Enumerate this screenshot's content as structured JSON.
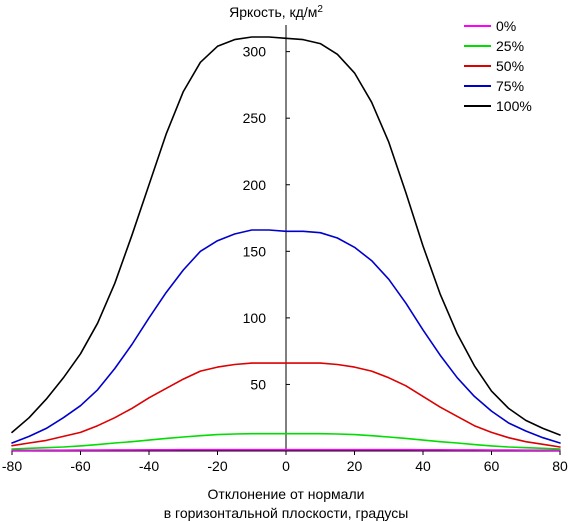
{
  "chart_data": {
    "type": "line",
    "title": "Яркость, кд/м",
    "title_superscript": "2",
    "xlabel_line1": "Отклонение от нормали",
    "xlabel_line2": "в горизонтальной плоскости, градусы",
    "ylabel": "",
    "xlim": [
      -80,
      80
    ],
    "ylim": [
      0,
      320
    ],
    "xticks": [
      -80,
      -60,
      -40,
      -20,
      0,
      20,
      40,
      60,
      80
    ],
    "yticks": [
      50,
      100,
      150,
      200,
      250,
      300
    ],
    "grid": false,
    "legend_position": "top-right",
    "x": [
      -80,
      -75,
      -70,
      -65,
      -60,
      -55,
      -50,
      -45,
      -40,
      -35,
      -30,
      -25,
      -20,
      -15,
      -10,
      -5,
      0,
      5,
      10,
      15,
      20,
      25,
      30,
      35,
      40,
      45,
      50,
      55,
      60,
      65,
      70,
      75,
      80
    ],
    "series": [
      {
        "name": "0%",
        "color": "#ff00ff",
        "values": [
          0.5,
          0.5,
          0.6,
          0.6,
          0.7,
          0.7,
          0.8,
          0.8,
          0.9,
          0.9,
          1.0,
          1.0,
          1.0,
          1.0,
          1.0,
          1.0,
          1.0,
          1.0,
          1.0,
          1.0,
          1.0,
          1.0,
          1.0,
          1.0,
          0.9,
          0.9,
          0.8,
          0.8,
          0.7,
          0.7,
          0.6,
          0.6,
          0.5
        ]
      },
      {
        "name": "25%",
        "color": "#00dd00",
        "values": [
          1.5,
          2.0,
          2.5,
          3.0,
          3.8,
          4.8,
          6.0,
          7.0,
          8.2,
          9.5,
          10.5,
          11.5,
          12.3,
          12.8,
          13.0,
          13.0,
          13.0,
          13.0,
          13.0,
          12.8,
          12.3,
          11.5,
          10.5,
          9.5,
          8.2,
          7.0,
          6.0,
          4.8,
          3.8,
          3.0,
          2.5,
          2.0,
          1.5
        ]
      },
      {
        "name": "50%",
        "color": "#dd0000",
        "values": [
          4,
          6,
          8,
          11,
          14,
          19,
          25,
          32,
          40,
          47,
          54,
          60,
          63,
          65,
          66,
          66,
          66,
          66,
          66,
          65,
          63,
          60,
          55,
          49,
          41,
          33,
          26,
          19,
          14,
          10,
          7,
          5,
          3
        ]
      },
      {
        "name": "75%",
        "color": "#0000cc",
        "values": [
          6,
          11,
          17,
          25,
          34,
          46,
          62,
          80,
          100,
          119,
          136,
          150,
          158,
          163,
          166,
          166,
          165,
          165,
          164,
          160,
          153,
          143,
          129,
          111,
          91,
          72,
          55,
          41,
          30,
          21,
          15,
          10,
          6
        ]
      },
      {
        "name": "100%",
        "color": "#000000",
        "values": [
          14,
          25,
          39,
          55,
          73,
          96,
          126,
          162,
          200,
          238,
          270,
          292,
          304,
          309,
          311,
          311,
          310,
          309,
          306,
          298,
          284,
          262,
          232,
          194,
          154,
          118,
          88,
          64,
          45,
          32,
          23,
          17,
          12
        ]
      }
    ]
  }
}
